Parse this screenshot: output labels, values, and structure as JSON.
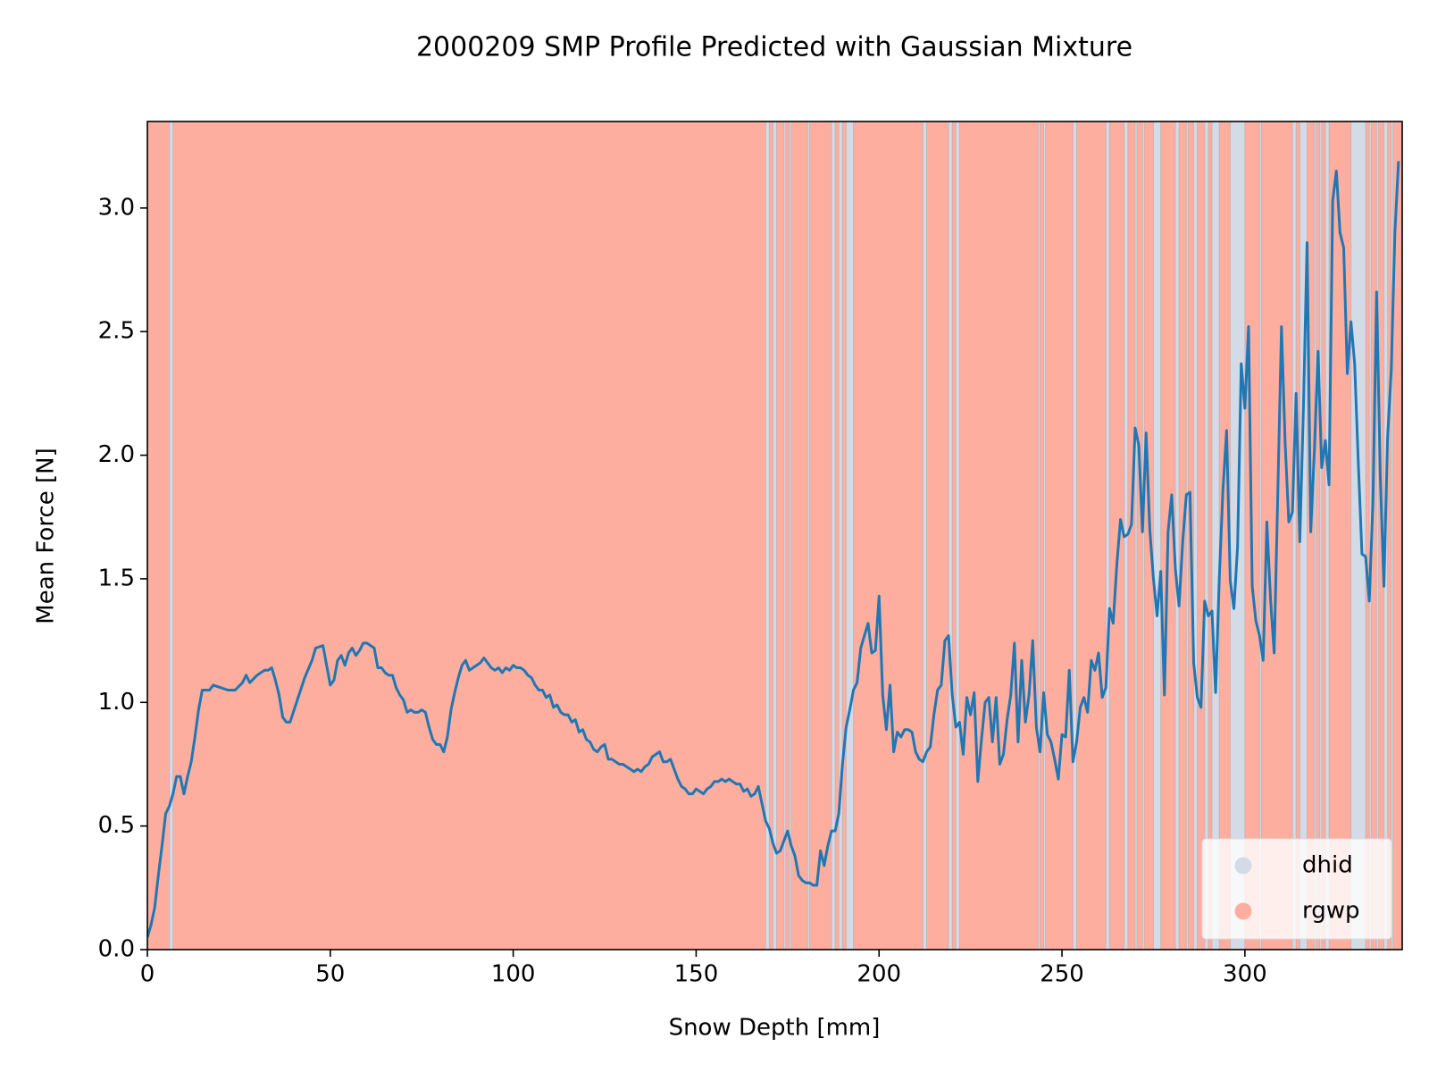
{
  "chart_data": {
    "type": "line",
    "title": "2000209 SMP Profile Predicted with Gaussian Mixture",
    "x_label": "Snow Depth [mm]",
    "y_label": "Mean Force [N]",
    "xlim": [
      0,
      343
    ],
    "ylim": [
      0,
      3.35
    ],
    "xticks": [
      0,
      50,
      100,
      150,
      200,
      250,
      300
    ],
    "yticks": [
      {
        "value": 0,
        "label": "0.0"
      },
      0.5,
      {
        "value": 1,
        "label": "1.0"
      },
      1.5,
      {
        "value": 2,
        "label": "2.0"
      },
      2.5,
      {
        "value": 3,
        "label": "3.0"
      }
    ],
    "color": "#1f77b4",
    "legend": "lower right",
    "classes": [
      {
        "name": "dhid",
        "color": "#d3dbe7"
      },
      {
        "name": "rgwp",
        "color": "#fdae9f"
      }
    ],
    "background_class": 1,
    "regions": [
      {
        "class": 0,
        "x": [
          6,
          7
        ]
      },
      {
        "class": 0,
        "x": [
          169,
          170
        ]
      },
      {
        "class": 0,
        "x": [
          171,
          172
        ]
      },
      {
        "class": 0,
        "x": [
          174,
          174.5
        ]
      },
      {
        "class": 0,
        "x": [
          175.5,
          176
        ]
      },
      {
        "class": 0,
        "x": [
          180.5,
          181
        ]
      },
      {
        "class": 0,
        "x": [
          187,
          188
        ]
      },
      {
        "class": 0,
        "x": [
          189,
          190
        ]
      },
      {
        "class": 0,
        "x": [
          191,
          193
        ]
      },
      {
        "class": 0,
        "x": [
          212,
          213
        ]
      },
      {
        "class": 0,
        "x": [
          219,
          220
        ]
      },
      {
        "class": 0,
        "x": [
          221,
          222
        ]
      },
      {
        "class": 0,
        "x": [
          243.5,
          244
        ]
      },
      {
        "class": 0,
        "x": [
          245,
          245.5
        ]
      },
      {
        "class": 0,
        "x": [
          253,
          254
        ]
      },
      {
        "class": 0,
        "x": [
          262,
          263
        ]
      },
      {
        "class": 0,
        "x": [
          267,
          268
        ]
      },
      {
        "class": 0,
        "x": [
          270,
          270.5
        ]
      },
      {
        "class": 0,
        "x": [
          272,
          272.5
        ]
      },
      {
        "class": 0,
        "x": [
          275,
          277
        ]
      },
      {
        "class": 0,
        "x": [
          281,
          282
        ]
      },
      {
        "class": 0,
        "x": [
          284,
          284.5
        ]
      },
      {
        "class": 0,
        "x": [
          286,
          287
        ]
      },
      {
        "class": 0,
        "x": [
          289,
          290
        ]
      },
      {
        "class": 0,
        "x": [
          291,
          293
        ]
      },
      {
        "class": 0,
        "x": [
          296,
          300
        ]
      },
      {
        "class": 0,
        "x": [
          304,
          304.5
        ]
      },
      {
        "class": 0,
        "x": [
          313,
          314
        ]
      },
      {
        "class": 0,
        "x": [
          315,
          317
        ]
      },
      {
        "class": 0,
        "x": [
          319,
          319.5
        ]
      },
      {
        "class": 0,
        "x": [
          320.5,
          321
        ]
      },
      {
        "class": 0,
        "x": [
          322,
          323
        ]
      },
      {
        "class": 0,
        "x": [
          329,
          333
        ]
      },
      {
        "class": 0,
        "x": [
          334,
          334.5
        ]
      },
      {
        "class": 0,
        "x": [
          336,
          336.5
        ]
      },
      {
        "class": 0,
        "x": [
          338,
          339
        ]
      },
      {
        "class": 0,
        "x": [
          340,
          340.5
        ]
      }
    ],
    "x": [
      0,
      1,
      2,
      3,
      4,
      5,
      6,
      7,
      8,
      9,
      10,
      11,
      12,
      13,
      14,
      15,
      16,
      17,
      18,
      20,
      22,
      24,
      26,
      27,
      28,
      30,
      32,
      33,
      34,
      35,
      36,
      37,
      38,
      39,
      41,
      43,
      45,
      46,
      48,
      49,
      50,
      51,
      52,
      53,
      54,
      55,
      56,
      57,
      58,
      59,
      60,
      61,
      62,
      63,
      64,
      65,
      66,
      67,
      68,
      69,
      70,
      71,
      72,
      73,
      74,
      75,
      76,
      77,
      78,
      79,
      80,
      81,
      82,
      83,
      84,
      85,
      86,
      87,
      88,
      89,
      90,
      91,
      92,
      93,
      94,
      95,
      96,
      97,
      98,
      99,
      100,
      101,
      102,
      103,
      104,
      105,
      106,
      107,
      108,
      109,
      110,
      111,
      112,
      113,
      114,
      115,
      116,
      117,
      118,
      119,
      120,
      121,
      122,
      123,
      124,
      125,
      126,
      127,
      128,
      129,
      130,
      131,
      132,
      133,
      134,
      135,
      136,
      137,
      138,
      139,
      140,
      141,
      142,
      143,
      144,
      145,
      146,
      147,
      148,
      149,
      150,
      151,
      152,
      153,
      154,
      155,
      156,
      157,
      158,
      159,
      160,
      161,
      162,
      163,
      164,
      165,
      166,
      167,
      168,
      169,
      170,
      171,
      172,
      173,
      174,
      175,
      176,
      177,
      178,
      179,
      180,
      181,
      182,
      183,
      184,
      185,
      186,
      187,
      188,
      189,
      190,
      191,
      192,
      193,
      194,
      195,
      196,
      197,
      198,
      199,
      200,
      201,
      202,
      203,
      204,
      205,
      206,
      207,
      208,
      209,
      210,
      211,
      212,
      213,
      214,
      215,
      216,
      217,
      218,
      219,
      220,
      221,
      222,
      223,
      224,
      225,
      226,
      227,
      228,
      229,
      230,
      231,
      232,
      233,
      234,
      235,
      236,
      237,
      238,
      239,
      240,
      241,
      242,
      243,
      244,
      245,
      246,
      247,
      248,
      249,
      250,
      251,
      252,
      253,
      254,
      255,
      256,
      257,
      258,
      259,
      260,
      261,
      262,
      263,
      264,
      265,
      266,
      267,
      268,
      269,
      270,
      271,
      272,
      273,
      274,
      275,
      276,
      277,
      278,
      279,
      280,
      281,
      282,
      283,
      284,
      285,
      286,
      287,
      288,
      289,
      290,
      291,
      292,
      293,
      294,
      295,
      296,
      297,
      298,
      299,
      300,
      301,
      302,
      303,
      304,
      305,
      306,
      307,
      308,
      309,
      310,
      311,
      312,
      313,
      314,
      315,
      316,
      317,
      318,
      319,
      320,
      321,
      322,
      323,
      324,
      325,
      326,
      327,
      328,
      329,
      330,
      331,
      332,
      333,
      334,
      335,
      336,
      337,
      338,
      339,
      340,
      341,
      342
    ],
    "values": [
      0.05,
      0.1,
      0.17,
      0.3,
      0.42,
      0.55,
      0.58,
      0.63,
      0.7,
      0.7,
      0.63,
      0.7,
      0.76,
      0.86,
      0.97,
      1.05,
      1.05,
      1.05,
      1.07,
      1.06,
      1.05,
      1.05,
      1.08,
      1.11,
      1.08,
      1.11,
      1.13,
      1.13,
      1.14,
      1.09,
      1.03,
      0.94,
      0.92,
      0.92,
      1.01,
      1.1,
      1.17,
      1.22,
      1.23,
      1.15,
      1.07,
      1.09,
      1.17,
      1.19,
      1.15,
      1.2,
      1.22,
      1.19,
      1.21,
      1.24,
      1.24,
      1.23,
      1.22,
      1.14,
      1.14,
      1.12,
      1.11,
      1.11,
      1.06,
      1.03,
      1.01,
      0.96,
      0.97,
      0.96,
      0.96,
      0.97,
      0.96,
      0.9,
      0.85,
      0.83,
      0.83,
      0.8,
      0.86,
      0.97,
      1.04,
      1.1,
      1.15,
      1.17,
      1.13,
      1.14,
      1.15,
      1.16,
      1.18,
      1.16,
      1.14,
      1.13,
      1.14,
      1.12,
      1.14,
      1.13,
      1.15,
      1.14,
      1.14,
      1.13,
      1.11,
      1.1,
      1.07,
      1.05,
      1.05,
      1.02,
      1.03,
      0.98,
      0.99,
      0.96,
      0.95,
      0.95,
      0.92,
      0.93,
      0.88,
      0.89,
      0.85,
      0.84,
      0.81,
      0.8,
      0.82,
      0.83,
      0.77,
      0.77,
      0.76,
      0.75,
      0.75,
      0.74,
      0.73,
      0.72,
      0.73,
      0.72,
      0.74,
      0.75,
      0.78,
      0.79,
      0.8,
      0.76,
      0.76,
      0.77,
      0.73,
      0.69,
      0.66,
      0.65,
      0.63,
      0.63,
      0.65,
      0.64,
      0.63,
      0.65,
      0.66,
      0.68,
      0.68,
      0.69,
      0.68,
      0.69,
      0.68,
      0.67,
      0.67,
      0.64,
      0.65,
      0.62,
      0.63,
      0.66,
      0.59,
      0.52,
      0.49,
      0.43,
      0.39,
      0.4,
      0.44,
      0.48,
      0.42,
      0.38,
      0.3,
      0.28,
      0.27,
      0.27,
      0.26,
      0.26,
      0.4,
      0.34,
      0.42,
      0.48,
      0.48,
      0.55,
      0.75,
      0.9,
      0.97,
      1.05,
      1.08,
      1.22,
      1.27,
      1.32,
      1.2,
      1.21,
      1.43,
      1.03,
      0.89,
      1.07,
      0.8,
      0.88,
      0.86,
      0.89,
      0.89,
      0.88,
      0.8,
      0.77,
      0.76,
      0.8,
      0.82,
      0.95,
      1.05,
      1.07,
      1.25,
      1.27,
      1.03,
      0.9,
      0.92,
      0.79,
      1.02,
      0.95,
      1.04,
      0.68,
      0.85,
      1.0,
      1.02,
      0.84,
      1.02,
      0.75,
      0.79,
      0.93,
      1.03,
      1.24,
      0.84,
      1.17,
      0.92,
      1.03,
      1.25,
      0.9,
      0.8,
      1.04,
      0.87,
      0.84,
      0.77,
      0.69,
      0.87,
      0.86,
      1.13,
      0.76,
      0.84,
      0.98,
      1.02,
      0.96,
      1.17,
      1.13,
      1.2,
      1.02,
      1.06,
      1.38,
      1.32,
      1.56,
      1.74,
      1.67,
      1.68,
      1.72,
      2.11,
      2.04,
      1.69,
      2.09,
      1.7,
      1.5,
      1.35,
      1.53,
      1.03,
      1.69,
      1.84,
      1.54,
      1.39,
      1.65,
      1.84,
      1.85,
      1.16,
      1.02,
      0.98,
      1.41,
      1.35,
      1.37,
      1.04,
      1.5,
      1.86,
      2.1,
      1.49,
      1.38,
      1.63,
      2.37,
      2.19,
      2.52,
      1.47,
      1.33,
      1.27,
      1.17,
      1.73,
      1.42,
      1.2,
      1.85,
      2.52,
      2.05,
      1.73,
      1.77,
      2.25,
      1.65,
      2.19,
      2.86,
      1.69,
      2.02,
      2.42,
      1.95,
      2.06,
      1.88,
      3.03,
      3.15,
      2.9,
      2.84,
      2.33,
      2.54,
      2.37,
      1.97,
      1.6,
      1.59,
      1.41,
      1.81,
      2.66,
      1.92,
      1.47,
      2.07,
      2.34,
      2.9,
      3.19
    ]
  }
}
